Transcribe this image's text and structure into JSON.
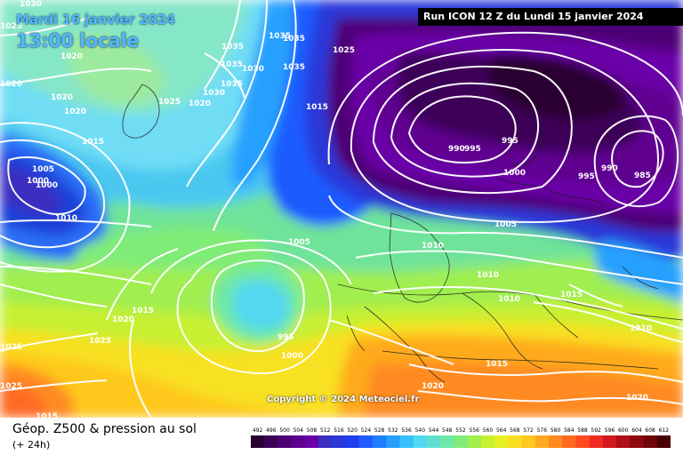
{
  "header": {
    "run_label": "Run ICON 12 Z du Lundi 15 janvier 2024",
    "date_label": "Mardi 16 janvier 2024",
    "time_label": "13:00 locale"
  },
  "copyright": "Copyright © 2024 Meteociel.fr",
  "legend": {
    "title": "Géop. Z500 & pression au sol",
    "subtitle": "(+ 24h)",
    "scale_values": [
      "492",
      "496",
      "500",
      "504",
      "508",
      "512",
      "516",
      "520",
      "524",
      "528",
      "532",
      "536",
      "540",
      "544",
      "548",
      "552",
      "556",
      "560",
      "564",
      "568",
      "572",
      "576",
      "580",
      "584",
      "588",
      "592",
      "596",
      "600",
      "604",
      "608",
      "612"
    ],
    "scale_colors": [
      "#2a0033",
      "#3d0058",
      "#4d0074",
      "#5e0090",
      "#6a00a8",
      "#3a2fc0",
      "#2a38d8",
      "#1d3ff0",
      "#1f5cff",
      "#1f7dff",
      "#25a0ff",
      "#35c0ff",
      "#52d8f0",
      "#60e0d0",
      "#6ee8a8",
      "#80ec78",
      "#a0ee50",
      "#c8f030",
      "#e8f020",
      "#f8e020",
      "#ffc81e",
      "#ffaa1e",
      "#ff8a20",
      "#ff6a20",
      "#ff4a20",
      "#f02a20",
      "#d01a20",
      "#b00e18",
      "#900810",
      "#700408",
      "#4a0000"
    ]
  },
  "isobar_labels": [
    "1030",
    "1025",
    "1020",
    "1020",
    "1020",
    "1020",
    "1035",
    "1035",
    "1035",
    "1035",
    "1030",
    "1035",
    "1030",
    "1025",
    "1020",
    "1015",
    "1025",
    "1035",
    "1015",
    "1005",
    "1000",
    "1000",
    "1010",
    "1005",
    "990",
    "995",
    "995",
    "1000",
    "990",
    "995",
    "985",
    "1005",
    "1010",
    "1010",
    "1010",
    "1015",
    "1015",
    "1020",
    "1015",
    "995",
    "1000",
    "1025",
    "1025",
    "1025",
    "1020",
    "1015",
    "1010",
    "1020"
  ]
}
